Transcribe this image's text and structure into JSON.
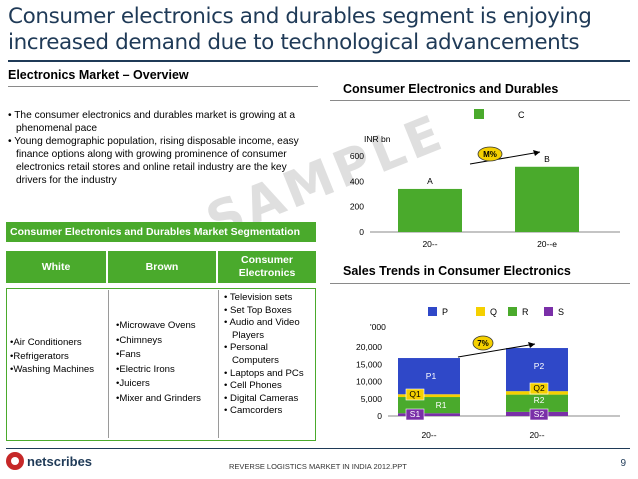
{
  "slide": {
    "title": "Consumer electronics and durables segment is enjoying increased demand due to technological advancements",
    "footer": "REVERSE LOGISTICS MARKET IN INDIA 2012.PPT",
    "page_number": "9",
    "logo_text": "netscribes",
    "watermark": "SAMPLE"
  },
  "overview": {
    "heading": "Electronics Market – Overview",
    "bullets": [
      "• The consumer electronics and durables market is growing at a phenomenal pace",
      "• Young demographic population, rising disposable income, easy finance options along with growing prominence of consumer electronics retail stores and online retail industry are the key drivers for the industry"
    ]
  },
  "segmentation": {
    "heading": "Consumer Electronics and Durables Market Segmentation",
    "columns": [
      {
        "header": "White",
        "items": [
          "•Air Conditioners",
          "•Refrigerators",
          "•Washing Machines"
        ]
      },
      {
        "header": "Brown",
        "items": [
          "•Microwave Ovens",
          "•Chimneys",
          "•Fans",
          "•Electric Irons",
          "•Juicers",
          "•Mixer and Grinders"
        ]
      },
      {
        "header": "Consumer Electronics",
        "items": [
          "• Television sets",
          "• Set Top Boxes",
          "• Audio and Video Players",
          "• Personal Computers",
          "• Laptops and PCs",
          "• Cell Phones",
          "• Digital Cameras",
          "• Camcorders"
        ]
      }
    ]
  },
  "colors": {
    "green": "#4aaa2c",
    "navy": "#1f3a57",
    "blue": "#2f48c8",
    "yellow": "#f5d000",
    "purple": "#7a2fa8"
  },
  "chart_data": [
    {
      "type": "bar",
      "title": "Consumer Electronics and Durables",
      "ylabel": "INR bn",
      "categories": [
        "20--",
        "20--e"
      ],
      "series": [
        {
          "name": "C",
          "values": [
            340,
            515
          ]
        }
      ],
      "data_labels": [
        "A",
        "B"
      ],
      "annotation": "M%",
      "ylim": [
        0,
        600
      ],
      "yticks": [
        0,
        200,
        400,
        600
      ],
      "legend": "top-right",
      "grid": false
    },
    {
      "type": "bar",
      "stacked": true,
      "title": "Sales Trends in Consumer Electronics",
      "ylabel": "'000",
      "categories": [
        "20--",
        "20--"
      ],
      "series": [
        {
          "name": "S",
          "values": [
            800,
            1200
          ],
          "labels": [
            "S1",
            "S2"
          ]
        },
        {
          "name": "R",
          "values": [
            4700,
            5000
          ],
          "labels": [
            "R1",
            "R2"
          ]
        },
        {
          "name": "Q",
          "values": [
            800,
            1000
          ],
          "labels": [
            "Q1",
            "Q2"
          ]
        },
        {
          "name": "P",
          "values": [
            10500,
            12500
          ],
          "labels": [
            "P1",
            "P2"
          ]
        }
      ],
      "legend_order": [
        "P",
        "Q",
        "R",
        "S"
      ],
      "annotation": "7%",
      "ylim": [
        0,
        20000
      ],
      "yticks": [
        0,
        5000,
        10000,
        15000,
        20000
      ],
      "ytick_labels": [
        "0",
        "5,000",
        "10,000",
        "15,000",
        "20,000"
      ],
      "legend": "top",
      "grid": false
    }
  ]
}
